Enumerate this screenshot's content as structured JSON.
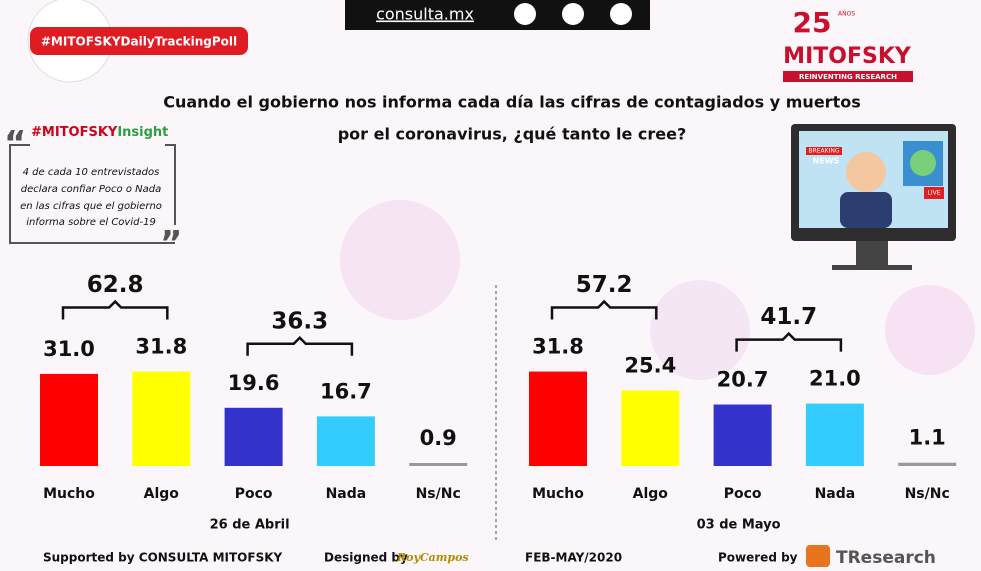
{
  "header": {
    "site": "consulta.mx",
    "hashtag": "#MITOFSKYDailyTrackingPoll",
    "logo_years": "25",
    "logo_years_label": "AÑOS",
    "logo": "MITOFSKY",
    "logo_tagline": "REINVENTING RESEARCH",
    "title_lines": [
      "Cuando el gobierno nos informa cada día las cifras de contagiados y muertos",
      "por el coronavirus, ¿qué tanto le cree?"
    ]
  },
  "insight": {
    "tag_brand": "#MITOFSKY",
    "tag_word": "Insight",
    "lines": [
      "4 de cada 10 entrevistados",
      "declara confiar Poco o Nada",
      "en las cifras que el gobierno",
      "informa  sobre el Covid-19"
    ]
  },
  "tv": {
    "breaking": "BREAKING",
    "news": "NEWS",
    "live": "LIVE"
  },
  "chart_data": [
    {
      "type": "bar",
      "xlabel": "26 de Abril",
      "categories": [
        "Mucho",
        "Algo",
        "Poco",
        "Nada",
        "Ns/Nc"
      ],
      "values": [
        31.0,
        31.8,
        19.6,
        16.7,
        0.9
      ],
      "value_labels": [
        "31.0",
        "31.8",
        "19.6",
        "16.7",
        "0.9"
      ],
      "colors": [
        "#ff0000",
        "#ffff00",
        "#3333cc",
        "#33ccff",
        "#999999"
      ],
      "annotations": [
        62.8,
        36.3
      ]
    },
    {
      "type": "bar",
      "xlabel": "03 de Mayo",
      "categories": [
        "Mucho",
        "Algo",
        "Poco",
        "Nada",
        "Ns/Nc"
      ],
      "values": [
        31.8,
        25.4,
        20.7,
        21.0,
        1.1
      ],
      "value_labels": [
        "31.8",
        "25.4",
        "20.7",
        "21.0",
        "1.1"
      ],
      "colors": [
        "#ff0000",
        "#ffff00",
        "#3333cc",
        "#33ccff",
        "#999999"
      ],
      "annotations": [
        57.2,
        41.7
      ]
    }
  ],
  "footer": {
    "supported": "Supported by  CONSULTA  MITOFSKY",
    "designed": "Designed by",
    "designer": "RoyCampos",
    "period": "FEB-MAY/2020",
    "powered": "Powered by",
    "powered_brand": "TResearch"
  }
}
